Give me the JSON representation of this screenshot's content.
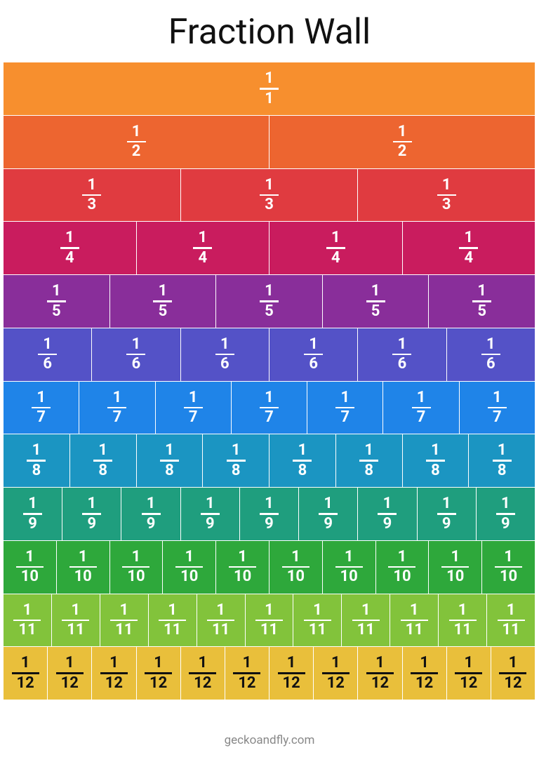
{
  "title": "Fraction Wall",
  "footer": "geckoandfly.com",
  "rows": [
    {
      "color": "#f78f2e",
      "text_color": "#ffffff",
      "cells": [
        {
          "numerator": 1,
          "denominator": 1
        }
      ]
    },
    {
      "color": "#ed6530",
      "text_color": "#ffffff",
      "cells": [
        {
          "numerator": 1,
          "denominator": 2
        },
        {
          "numerator": 1,
          "denominator": 2
        }
      ]
    },
    {
      "color": "#e03b40",
      "text_color": "#ffffff",
      "cells": [
        {
          "numerator": 1,
          "denominator": 3
        },
        {
          "numerator": 1,
          "denominator": 3
        },
        {
          "numerator": 1,
          "denominator": 3
        }
      ]
    },
    {
      "color": "#c91c5e",
      "text_color": "#ffffff",
      "cells": [
        {
          "numerator": 1,
          "denominator": 4
        },
        {
          "numerator": 1,
          "denominator": 4
        },
        {
          "numerator": 1,
          "denominator": 4
        },
        {
          "numerator": 1,
          "denominator": 4
        }
      ]
    },
    {
      "color": "#892e9a",
      "text_color": "#ffffff",
      "cells": [
        {
          "numerator": 1,
          "denominator": 5
        },
        {
          "numerator": 1,
          "denominator": 5
        },
        {
          "numerator": 1,
          "denominator": 5
        },
        {
          "numerator": 1,
          "denominator": 5
        },
        {
          "numerator": 1,
          "denominator": 5
        }
      ]
    },
    {
      "color": "#5452c7",
      "text_color": "#ffffff",
      "cells": [
        {
          "numerator": 1,
          "denominator": 6
        },
        {
          "numerator": 1,
          "denominator": 6
        },
        {
          "numerator": 1,
          "denominator": 6
        },
        {
          "numerator": 1,
          "denominator": 6
        },
        {
          "numerator": 1,
          "denominator": 6
        },
        {
          "numerator": 1,
          "denominator": 6
        }
      ]
    },
    {
      "color": "#1f84e8",
      "text_color": "#ffffff",
      "cells": [
        {
          "numerator": 1,
          "denominator": 7
        },
        {
          "numerator": 1,
          "denominator": 7
        },
        {
          "numerator": 1,
          "denominator": 7
        },
        {
          "numerator": 1,
          "denominator": 7
        },
        {
          "numerator": 1,
          "denominator": 7
        },
        {
          "numerator": 1,
          "denominator": 7
        },
        {
          "numerator": 1,
          "denominator": 7
        }
      ]
    },
    {
      "color": "#1b95c2",
      "text_color": "#ffffff",
      "cells": [
        {
          "numerator": 1,
          "denominator": 8
        },
        {
          "numerator": 1,
          "denominator": 8
        },
        {
          "numerator": 1,
          "denominator": 8
        },
        {
          "numerator": 1,
          "denominator": 8
        },
        {
          "numerator": 1,
          "denominator": 8
        },
        {
          "numerator": 1,
          "denominator": 8
        },
        {
          "numerator": 1,
          "denominator": 8
        },
        {
          "numerator": 1,
          "denominator": 8
        }
      ]
    },
    {
      "color": "#1f9e7e",
      "text_color": "#ffffff",
      "cells": [
        {
          "numerator": 1,
          "denominator": 9
        },
        {
          "numerator": 1,
          "denominator": 9
        },
        {
          "numerator": 1,
          "denominator": 9
        },
        {
          "numerator": 1,
          "denominator": 9
        },
        {
          "numerator": 1,
          "denominator": 9
        },
        {
          "numerator": 1,
          "denominator": 9
        },
        {
          "numerator": 1,
          "denominator": 9
        },
        {
          "numerator": 1,
          "denominator": 9
        },
        {
          "numerator": 1,
          "denominator": 9
        }
      ]
    },
    {
      "color": "#2ea83b",
      "text_color": "#ffffff",
      "cells": [
        {
          "numerator": 1,
          "denominator": 10
        },
        {
          "numerator": 1,
          "denominator": 10
        },
        {
          "numerator": 1,
          "denominator": 10
        },
        {
          "numerator": 1,
          "denominator": 10
        },
        {
          "numerator": 1,
          "denominator": 10
        },
        {
          "numerator": 1,
          "denominator": 10
        },
        {
          "numerator": 1,
          "denominator": 10
        },
        {
          "numerator": 1,
          "denominator": 10
        },
        {
          "numerator": 1,
          "denominator": 10
        },
        {
          "numerator": 1,
          "denominator": 10
        }
      ]
    },
    {
      "color": "#82c33b",
      "text_color": "#ffffff",
      "cells": [
        {
          "numerator": 1,
          "denominator": 11
        },
        {
          "numerator": 1,
          "denominator": 11
        },
        {
          "numerator": 1,
          "denominator": 11
        },
        {
          "numerator": 1,
          "denominator": 11
        },
        {
          "numerator": 1,
          "denominator": 11
        },
        {
          "numerator": 1,
          "denominator": 11
        },
        {
          "numerator": 1,
          "denominator": 11
        },
        {
          "numerator": 1,
          "denominator": 11
        },
        {
          "numerator": 1,
          "denominator": 11
        },
        {
          "numerator": 1,
          "denominator": 11
        },
        {
          "numerator": 1,
          "denominator": 11
        }
      ]
    },
    {
      "color": "#e9bf3b",
      "text_color": "#111111",
      "cells": [
        {
          "numerator": 1,
          "denominator": 12
        },
        {
          "numerator": 1,
          "denominator": 12
        },
        {
          "numerator": 1,
          "denominator": 12
        },
        {
          "numerator": 1,
          "denominator": 12
        },
        {
          "numerator": 1,
          "denominator": 12
        },
        {
          "numerator": 1,
          "denominator": 12
        },
        {
          "numerator": 1,
          "denominator": 12
        },
        {
          "numerator": 1,
          "denominator": 12
        },
        {
          "numerator": 1,
          "denominator": 12
        },
        {
          "numerator": 1,
          "denominator": 12
        },
        {
          "numerator": 1,
          "denominator": 12
        },
        {
          "numerator": 1,
          "denominator": 12
        }
      ]
    }
  ]
}
